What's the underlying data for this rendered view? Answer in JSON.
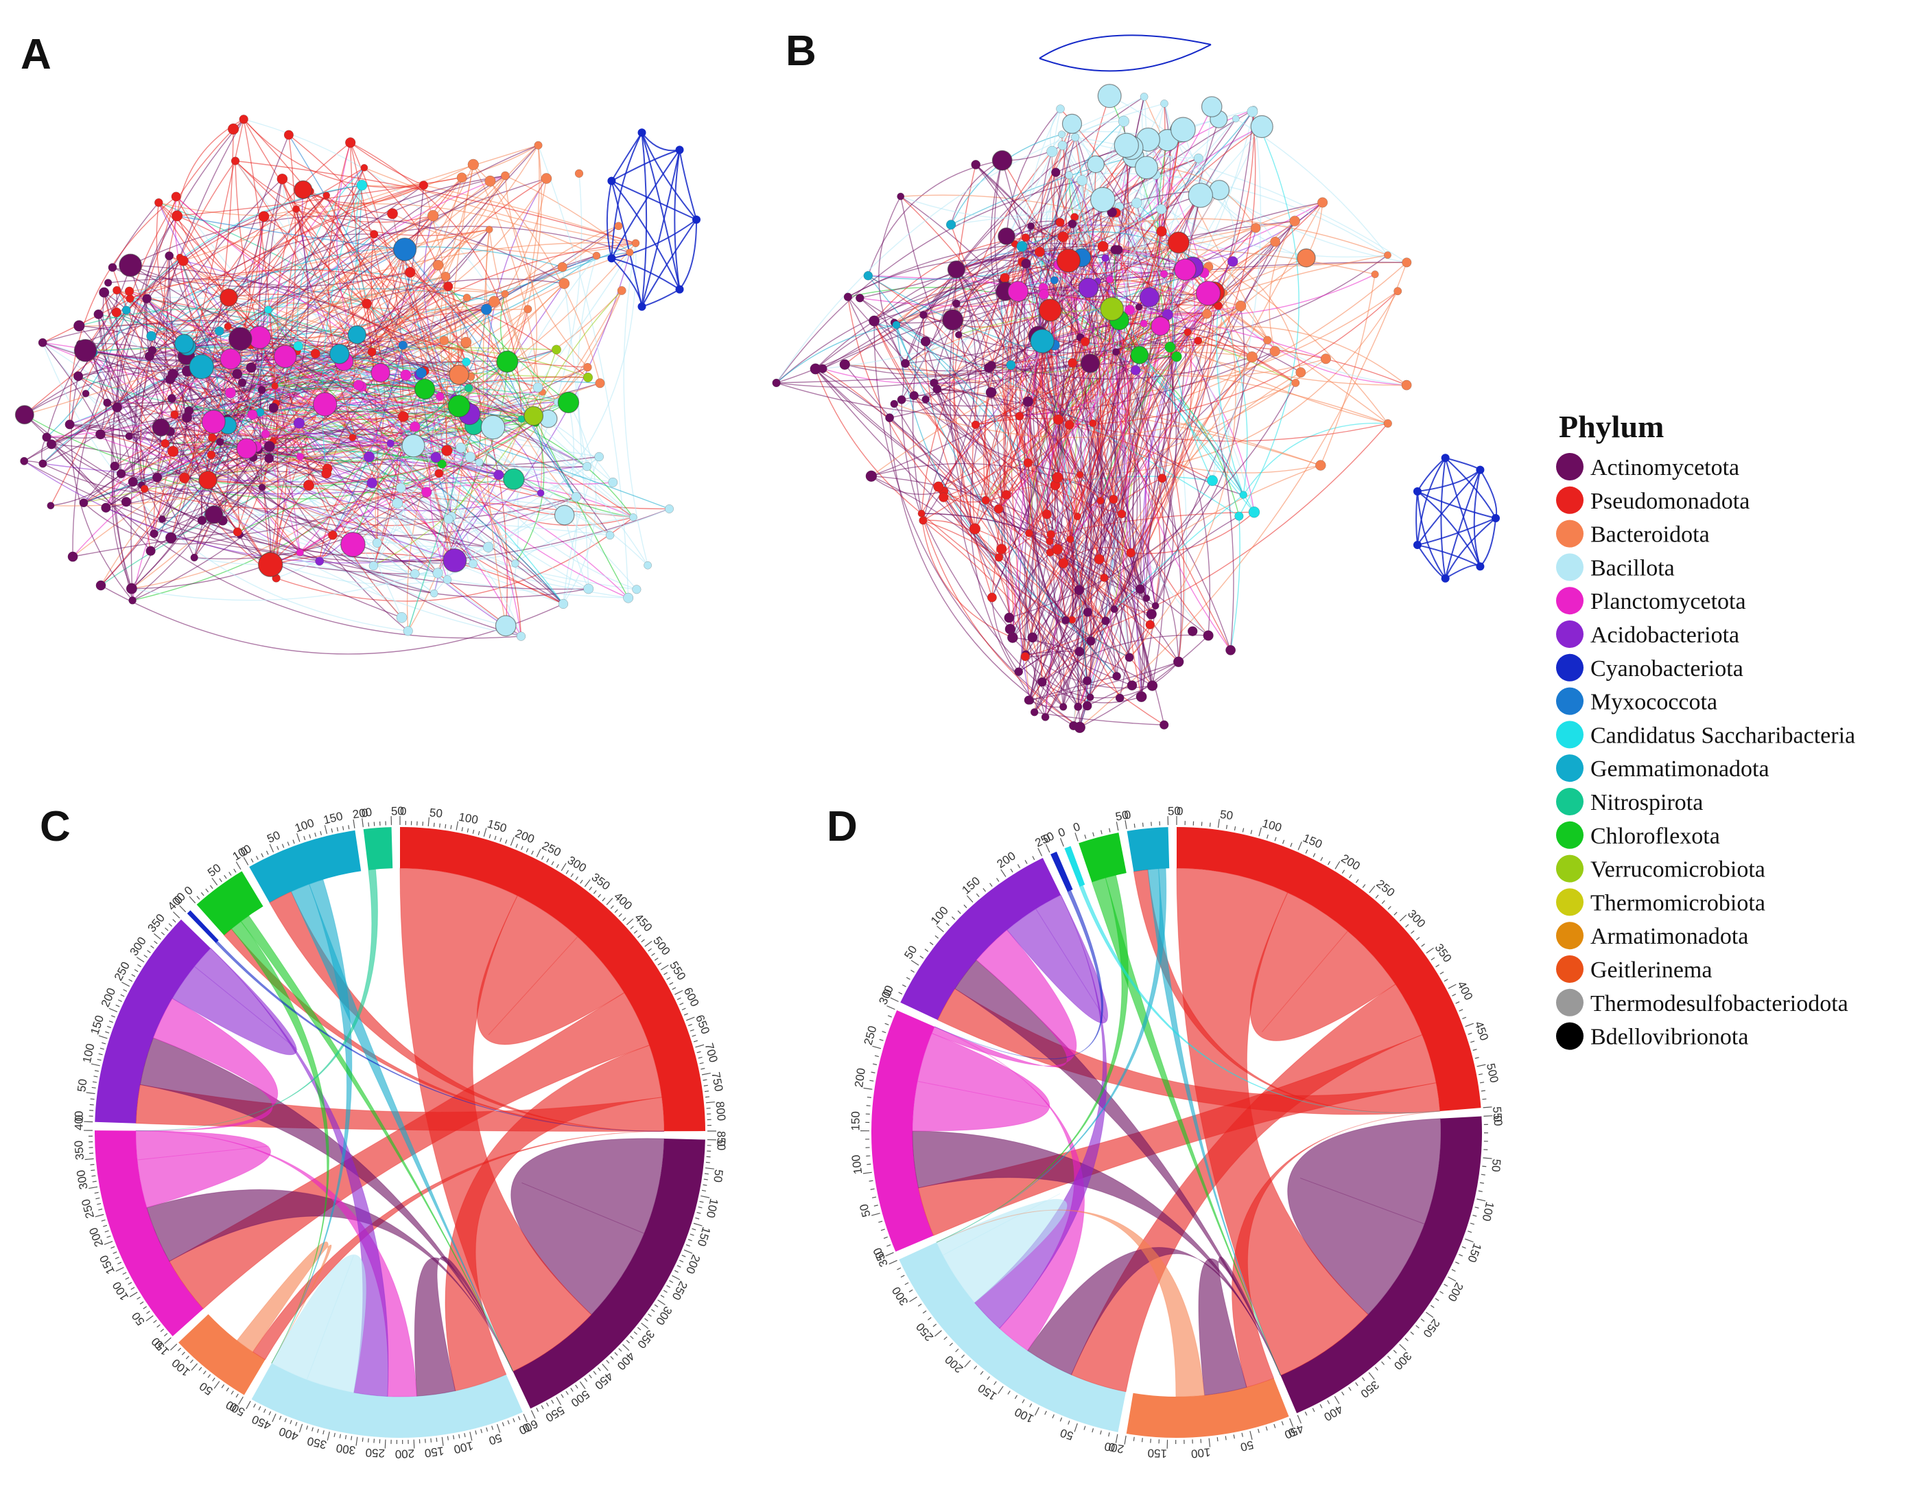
{
  "panels": [
    {
      "id": "A",
      "label": "A"
    },
    {
      "id": "B",
      "label": "B"
    },
    {
      "id": "C",
      "label": "C"
    },
    {
      "id": "D",
      "label": "D"
    }
  ],
  "legend": {
    "title": "Phylum",
    "items": [
      {
        "name": "Actinomycetota",
        "color": "#6b0d5f"
      },
      {
        "name": "Pseudomonadota",
        "color": "#e8211e"
      },
      {
        "name": "Bacteroidota",
        "color": "#f5804f"
      },
      {
        "name": "Bacillota",
        "color": "#b5e8f5"
      },
      {
        "name": "Planctomycetota",
        "color": "#ea22c8"
      },
      {
        "name": "Acidobacteriota",
        "color": "#8a25d0"
      },
      {
        "name": "Cyanobacteriota",
        "color": "#1428c8"
      },
      {
        "name": "Myxococcota",
        "color": "#1a7ad0"
      },
      {
        "name": "Candidatus Saccharibacteria",
        "color": "#1ee0e8"
      },
      {
        "name": "Gemmatimonadota",
        "color": "#12aacc"
      },
      {
        "name": "Nitrospirota",
        "color": "#14c890"
      },
      {
        "name": "Chloroflexota",
        "color": "#12c820"
      },
      {
        "name": "Verrucomicrobiota",
        "color": "#98cc14"
      },
      {
        "name": "Thermomicrobiota",
        "color": "#cccc12"
      },
      {
        "name": "Armatimonadota",
        "color": "#e08a0c"
      },
      {
        "name": "Geitlerinema",
        "color": "#ea5018"
      },
      {
        "name": "Thermodesulfobacteriodota",
        "color": "#999999"
      },
      {
        "name": "Bdellovibrionota",
        "color": "#000000"
      }
    ]
  },
  "chart_data": [
    {
      "panel": "C",
      "type": "chord",
      "sectors": [
        {
          "phylum": "Pseudomonadota",
          "max": 850,
          "color": "#e8211e"
        },
        {
          "phylum": "Actinomycetota",
          "max": 600,
          "color": "#6b0d5f"
        },
        {
          "phylum": "Bacillota",
          "max": 500,
          "color": "#b5e8f5"
        },
        {
          "phylum": "Bacteroidota",
          "max": 150,
          "color": "#f5804f"
        },
        {
          "phylum": "Planctomycetota",
          "max": 400,
          "color": "#ea22c8"
        },
        {
          "phylum": "Acidobacteriota",
          "max": 400,
          "color": "#8a25d0"
        },
        {
          "phylum": "Cyanobacteriota",
          "max": 0,
          "color": "#1428c8"
        },
        {
          "phylum": "Chloroflexota",
          "max": 100,
          "color": "#12c820"
        },
        {
          "phylum": "Gemmatimonadota",
          "max": 200,
          "color": "#12aacc"
        },
        {
          "phylum": "Nitrospirota",
          "max": 50,
          "color": "#14c890"
        }
      ],
      "links": [
        {
          "source": "Actinomycetota",
          "target": "Actinomycetota",
          "value": 200
        },
        {
          "source": "Pseudomonadota",
          "target": "Actinomycetota",
          "value": 250
        },
        {
          "source": "Pseudomonadota",
          "target": "Pseudomonadota",
          "value": 150
        },
        {
          "source": "Pseudomonadota",
          "target": "Planctomycetota",
          "value": 120
        },
        {
          "source": "Pseudomonadota",
          "target": "Bacillota",
          "value": 110
        },
        {
          "source": "Pseudomonadota",
          "target": "Acidobacteriota",
          "value": 80
        },
        {
          "source": "Pseudomonadota",
          "target": "Gemmatimonadota",
          "value": 50
        },
        {
          "source": "Pseudomonadota",
          "target": "Bacteroidota",
          "value": 30
        },
        {
          "source": "Pseudomonadota",
          "target": "Chloroflexota",
          "value": 20
        },
        {
          "source": "Actinomycetota",
          "target": "Planctomycetota",
          "value": 120
        },
        {
          "source": "Actinomycetota",
          "target": "Acidobacteriota",
          "value": 100
        },
        {
          "source": "Actinomycetota",
          "target": "Bacillota",
          "value": 80
        },
        {
          "source": "Planctomycetota",
          "target": "Planctomycetota",
          "value": 100
        },
        {
          "source": "Planctomycetota",
          "target": "Acidobacteriota",
          "value": 90
        },
        {
          "source": "Planctomycetota",
          "target": "Bacillota",
          "value": 60
        },
        {
          "source": "Acidobacteriota",
          "target": "Acidobacteriota",
          "value": 80
        },
        {
          "source": "Acidobacteriota",
          "target": "Bacillota",
          "value": 70
        },
        {
          "source": "Bacillota",
          "target": "Bacillota",
          "value": 100
        },
        {
          "source": "Bacteroidota",
          "target": "Bacillota",
          "value": 40
        },
        {
          "source": "Gemmatimonadota",
          "target": "Actinomycetota",
          "value": 40
        },
        {
          "source": "Gemmatimonadota",
          "target": "Bacillota",
          "value": 30
        },
        {
          "source": "Chloroflexota",
          "target": "Bacillota",
          "value": 25
        },
        {
          "source": "Chloroflexota",
          "target": "Actinomycetota",
          "value": 20
        },
        {
          "source": "Nitrospirota",
          "target": "Planctomycetota",
          "value": 15
        },
        {
          "source": "Cyanobacteriota",
          "target": "Pseudomonadota",
          "value": 5
        }
      ]
    },
    {
      "panel": "D",
      "type": "chord",
      "sectors": [
        {
          "phylum": "Pseudomonadota",
          "max": 550,
          "color": "#e8211e"
        },
        {
          "phylum": "Actinomycetota",
          "max": 450,
          "color": "#6b0d5f"
        },
        {
          "phylum": "Bacteroidota",
          "max": 200,
          "color": "#f5804f"
        },
        {
          "phylum": "Bacillota",
          "max": 350,
          "color": "#b5e8f5"
        },
        {
          "phylum": "Planctomycetota",
          "max": 300,
          "color": "#ea22c8"
        },
        {
          "phylum": "Acidobacteriota",
          "max": 250,
          "color": "#8a25d0"
        },
        {
          "phylum": "Cyanobacteriota",
          "max": 0,
          "color": "#1428c8"
        },
        {
          "phylum": "Candidatus Saccharibacteria",
          "max": 0,
          "color": "#1ee0e8"
        },
        {
          "phylum": "Chloroflexota",
          "max": 50,
          "color": "#12c820"
        },
        {
          "phylum": "Gemmatimonadota",
          "max": 50,
          "color": "#12aacc"
        }
      ],
      "links": [
        {
          "source": "Actinomycetota",
          "target": "Actinomycetota",
          "value": 150
        },
        {
          "source": "Pseudomonadota",
          "target": "Actinomycetota",
          "value": 160
        },
        {
          "source": "Pseudomonadota",
          "target": "Pseudomonadota",
          "value": 100
        },
        {
          "source": "Pseudomonadota",
          "target": "Bacillota",
          "value": 80
        },
        {
          "source": "Pseudomonadota",
          "target": "Planctomycetota",
          "value": 70
        },
        {
          "source": "Pseudomonadota",
          "target": "Acidobacteriota",
          "value": 50
        },
        {
          "source": "Pseudomonadota",
          "target": "Bacteroidota",
          "value": 40
        },
        {
          "source": "Pseudomonadota",
          "target": "Gemmatimonadota",
          "value": 20
        },
        {
          "source": "Actinomycetota",
          "target": "Planctomycetota",
          "value": 80
        },
        {
          "source": "Actinomycetota",
          "target": "Bacillota",
          "value": 70
        },
        {
          "source": "Actinomycetota",
          "target": "Bacteroidota",
          "value": 60
        },
        {
          "source": "Actinomycetota",
          "target": "Acidobacteriota",
          "value": 50
        },
        {
          "source": "Planctomycetota",
          "target": "Planctomycetota",
          "value": 70
        },
        {
          "source": "Planctomycetota",
          "target": "Acidobacteriota",
          "value": 60
        },
        {
          "source": "Planctomycetota",
          "target": "Bacillota",
          "value": 50
        },
        {
          "source": "Acidobacteriota",
          "target": "Acidobacteriota",
          "value": 50
        },
        {
          "source": "Acidobacteriota",
          "target": "Bacillota",
          "value": 50
        },
        {
          "source": "Bacillota",
          "target": "Bacillota",
          "value": 80
        },
        {
          "source": "Bacteroidota",
          "target": "Bacillota",
          "value": 40
        },
        {
          "source": "Chloroflexota",
          "target": "Actinomycetota",
          "value": 20
        },
        {
          "source": "Chloroflexota",
          "target": "Bacillota",
          "value": 15
        },
        {
          "source": "Gemmatimonadota",
          "target": "Actinomycetota",
          "value": 15
        },
        {
          "source": "Gemmatimonadota",
          "target": "Bacillota",
          "value": 10
        },
        {
          "source": "Candidatus Saccharibacteria",
          "target": "Pseudomonadota",
          "value": 5
        },
        {
          "source": "Cyanobacteriota",
          "target": "Planctomycetota",
          "value": 5
        }
      ]
    }
  ]
}
